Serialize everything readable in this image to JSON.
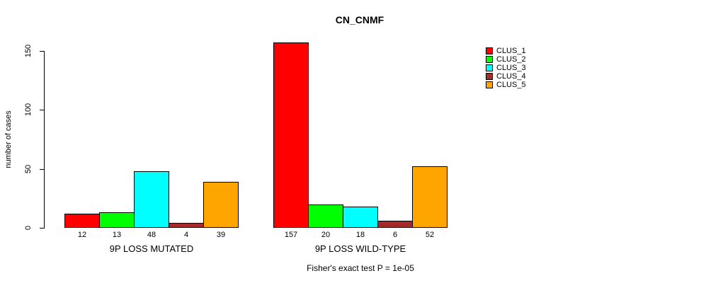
{
  "chart_data": {
    "type": "bar",
    "title": "CN_CNMF",
    "xlabel": "",
    "ylabel": "number of cases",
    "ylim": [
      0,
      150
    ],
    "yticks": [
      0,
      50,
      100,
      150
    ],
    "grid": false,
    "legend_position": "right",
    "series": [
      {
        "name": "CLUS_1",
        "color": "#FF0000"
      },
      {
        "name": "CLUS_2",
        "color": "#00FF00"
      },
      {
        "name": "CLUS_3",
        "color": "#00FFFF"
      },
      {
        "name": "CLUS_4",
        "color": "#A52A2A"
      },
      {
        "name": "CLUS_5",
        "color": "#FFA500"
      }
    ],
    "groups": [
      {
        "label": "9P LOSS MUTATED",
        "values": [
          12,
          13,
          48,
          4,
          39
        ]
      },
      {
        "label": "9P LOSS WILD-TYPE",
        "values": [
          157,
          20,
          18,
          6,
          52
        ]
      }
    ],
    "annotation": "Fisher's exact test P = 1e-05",
    "bar_border_color": "#000000",
    "text_color": "#000000",
    "background_color": "#FFFFFF"
  }
}
